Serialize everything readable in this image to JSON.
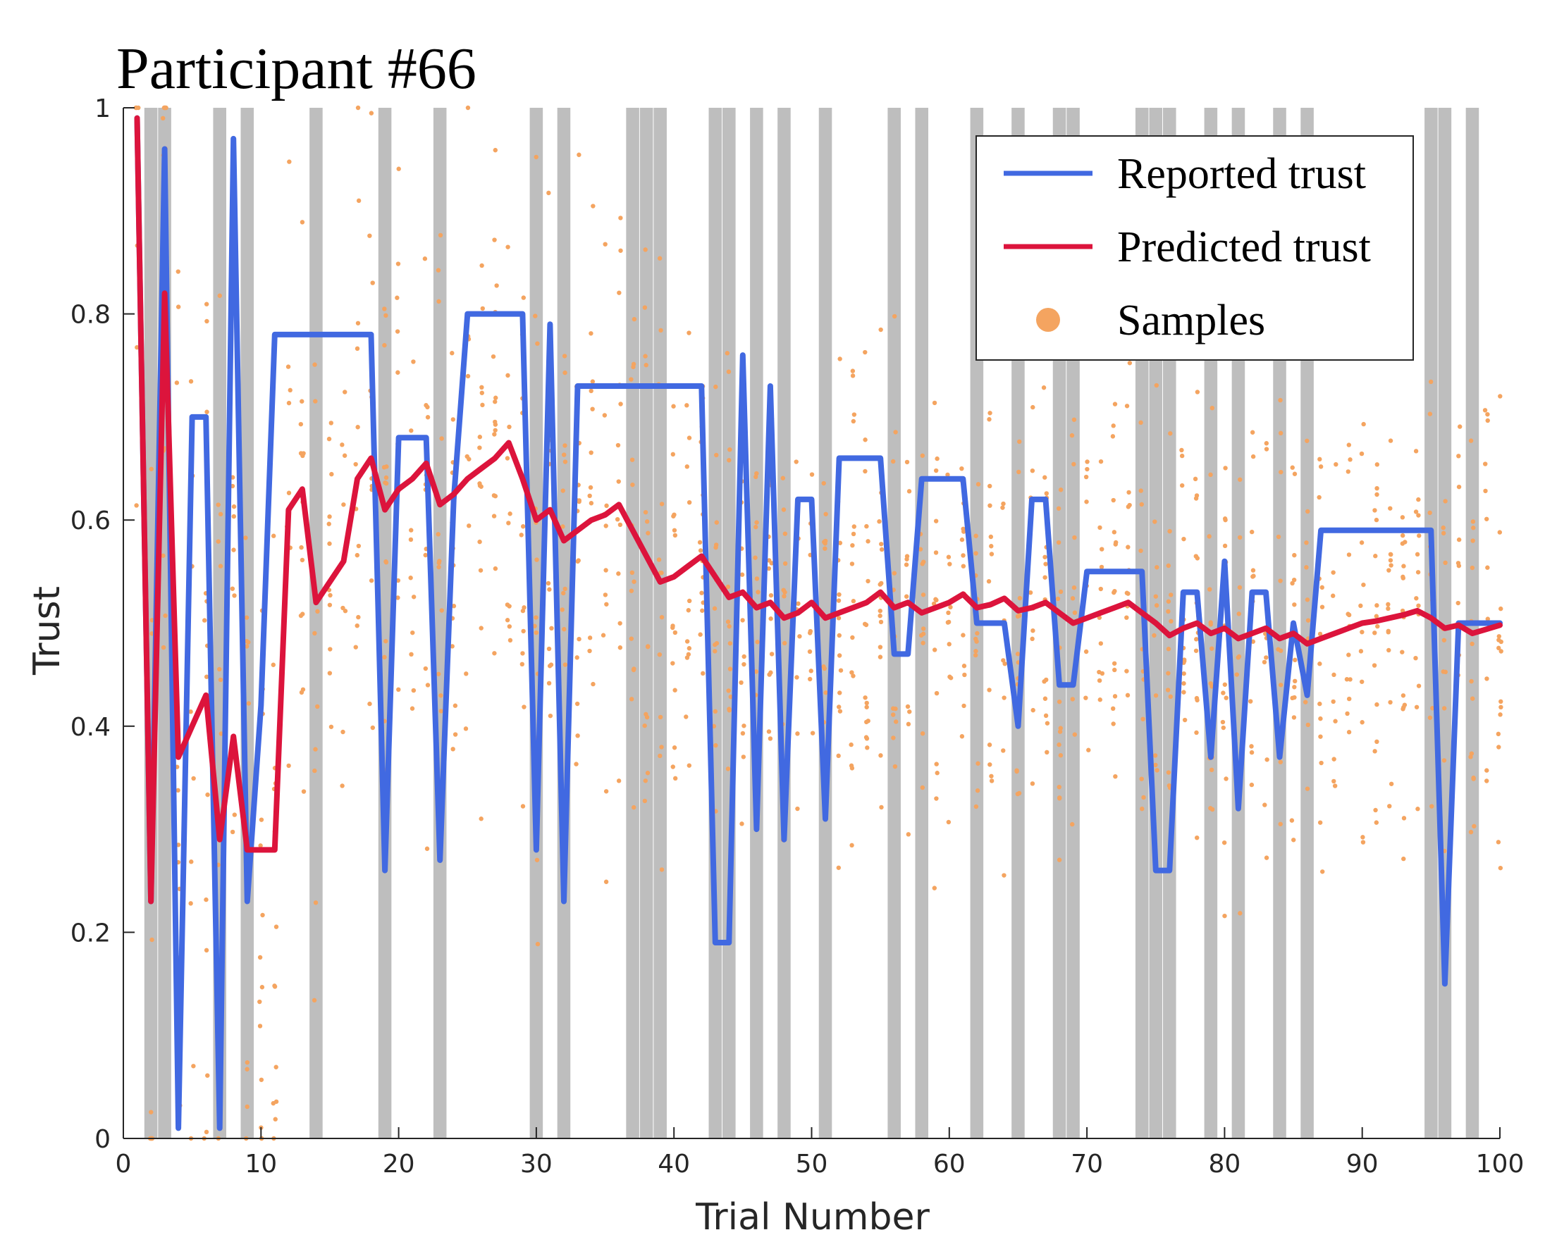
{
  "colors": {
    "reported": "#4169E1",
    "predicted": "#DC143C",
    "samples": "#F4A460",
    "shade": "#BEBEBE",
    "axis": "#262626"
  },
  "chart_data": {
    "type": "line",
    "title": "Participant #66",
    "xlabel": "Trial Number",
    "ylabel": "Trust",
    "xlim": [
      0,
      100
    ],
    "ylim": [
      0,
      1
    ],
    "x_ticks": [
      "0",
      "10",
      "20",
      "30",
      "40",
      "50",
      "60",
      "70",
      "80",
      "90",
      "100"
    ],
    "y_ticks": [
      "0",
      "0.2",
      "0.4",
      "0.6",
      "0.8",
      "1"
    ],
    "legend": {
      "position": "top-right",
      "entries": [
        "Reported trust",
        "Predicted trust",
        "Samples"
      ]
    },
    "failure_trials": [
      2,
      3,
      7,
      9,
      14,
      19,
      23,
      30,
      32,
      37,
      38,
      39,
      43,
      44,
      46,
      48,
      51,
      56,
      58,
      62,
      65,
      68,
      69,
      74,
      75,
      76,
      79,
      81,
      84,
      86,
      95,
      96,
      98
    ],
    "series": [
      {
        "name": "Reported trust",
        "x": [
          1,
          2,
          3,
          4,
          5,
          6,
          7,
          8,
          9,
          10,
          11,
          12,
          13,
          14,
          15,
          16,
          17,
          18,
          19,
          20,
          21,
          22,
          23,
          24,
          25,
          26,
          27,
          28,
          29,
          30,
          31,
          32,
          33,
          34,
          35,
          36,
          37,
          38,
          39,
          40,
          41,
          42,
          43,
          44,
          45,
          46,
          47,
          48,
          49,
          50,
          51,
          52,
          53,
          54,
          55,
          56,
          57,
          58,
          59,
          60,
          61,
          62,
          63,
          64,
          65,
          66,
          67,
          68,
          69,
          70,
          71,
          72,
          73,
          74,
          75,
          76,
          77,
          78,
          79,
          80,
          81,
          82,
          83,
          84,
          85,
          86,
          87,
          88,
          89,
          90,
          91,
          92,
          93,
          94,
          95,
          96,
          97,
          98,
          99,
          100
        ],
        "values": [
          0.99,
          0.23,
          0.96,
          0.01,
          0.7,
          0.7,
          0.01,
          0.97,
          0.23,
          0.42,
          0.78,
          0.78,
          0.78,
          0.78,
          0.78,
          0.78,
          0.78,
          0.78,
          0.26,
          0.68,
          0.68,
          0.68,
          0.27,
          0.62,
          0.8,
          0.8,
          0.8,
          0.8,
          0.8,
          0.28,
          0.79,
          0.23,
          0.73,
          0.73,
          0.73,
          0.73,
          0.73,
          0.73,
          0.73,
          0.73,
          0.73,
          0.73,
          0.19,
          0.19,
          0.76,
          0.3,
          0.73,
          0.29,
          0.62,
          0.62,
          0.31,
          0.66,
          0.66,
          0.66,
          0.66,
          0.47,
          0.47,
          0.64,
          0.64,
          0.64,
          0.64,
          0.5,
          0.5,
          0.5,
          0.4,
          0.62,
          0.62,
          0.44,
          0.44,
          0.55,
          0.55,
          0.55,
          0.55,
          0.55,
          0.26,
          0.26,
          0.53,
          0.53,
          0.37,
          0.56,
          0.32,
          0.53,
          0.53,
          0.37,
          0.5,
          0.43,
          0.59,
          0.59,
          0.59,
          0.59,
          0.59,
          0.59,
          0.59,
          0.59,
          0.59,
          0.15,
          0.5,
          0.5,
          0.5,
          0.5
        ]
      },
      {
        "name": "Predicted trust",
        "x": [
          1,
          2,
          3,
          4,
          5,
          6,
          7,
          8,
          9,
          10,
          11,
          12,
          13,
          14,
          15,
          16,
          17,
          18,
          19,
          20,
          21,
          22,
          23,
          24,
          25,
          26,
          27,
          28,
          29,
          30,
          31,
          32,
          33,
          34,
          35,
          36,
          37,
          38,
          39,
          40,
          41,
          42,
          43,
          44,
          45,
          46,
          47,
          48,
          49,
          50,
          51,
          52,
          53,
          54,
          55,
          56,
          57,
          58,
          59,
          60,
          61,
          62,
          63,
          64,
          65,
          66,
          67,
          68,
          69,
          70,
          71,
          72,
          73,
          74,
          75,
          76,
          77,
          78,
          79,
          80,
          81,
          82,
          83,
          84,
          85,
          86,
          87,
          88,
          89,
          90,
          91,
          92,
          93,
          94,
          95,
          96,
          97,
          98,
          99,
          100
        ],
        "values": [
          0.99,
          0.23,
          0.82,
          0.37,
          0.4,
          0.43,
          0.29,
          0.39,
          0.28,
          0.28,
          0.28,
          0.61,
          0.63,
          0.52,
          0.54,
          0.56,
          0.64,
          0.66,
          0.61,
          0.63,
          0.64,
          0.655,
          0.615,
          0.625,
          0.64,
          0.65,
          0.66,
          0.675,
          0.64,
          0.6,
          0.61,
          0.58,
          0.59,
          0.6,
          0.605,
          0.615,
          0.59,
          0.565,
          0.54,
          0.545,
          0.555,
          0.565,
          0.545,
          0.525,
          0.53,
          0.515,
          0.52,
          0.505,
          0.51,
          0.52,
          0.505,
          0.51,
          0.515,
          0.52,
          0.53,
          0.515,
          0.52,
          0.51,
          0.515,
          0.52,
          0.528,
          0.515,
          0.518,
          0.524,
          0.512,
          0.515,
          0.52,
          0.51,
          0.5,
          0.505,
          0.51,
          0.515,
          0.52,
          0.51,
          0.5,
          0.488,
          0.495,
          0.5,
          0.49,
          0.495,
          0.485,
          0.49,
          0.495,
          0.485,
          0.49,
          0.48,
          0.485,
          0.49,
          0.495,
          0.5,
          0.502,
          0.505,
          0.508,
          0.512,
          0.505,
          0.495,
          0.498,
          0.49,
          0.494,
          0.498
        ]
      }
    ]
  }
}
